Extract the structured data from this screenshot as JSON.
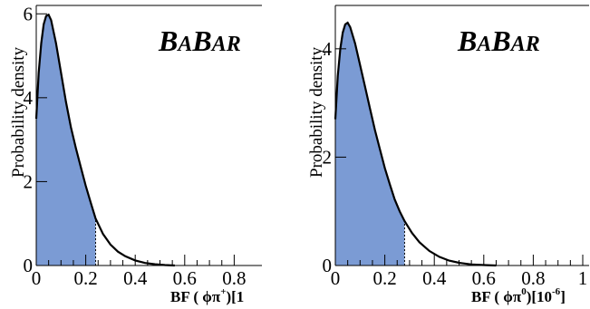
{
  "chart_data": [
    {
      "type": "area",
      "logo_text": {
        "big_b1": "B",
        "small_a1": "A",
        "big_b2": "B",
        "small_ar": "AR"
      },
      "ylabel": "Probability density",
      "xlabel": {
        "main": "BF ( ϕπ",
        "sup": "+",
        "tail": ")[1"
      },
      "xlim": [
        0,
        1
      ],
      "ylim": [
        0,
        6.2
      ],
      "x_ticks": [
        "0",
        "0.2",
        "0.4",
        "0.6",
        "0.8"
      ],
      "y_ticks": [
        "0",
        "2",
        "4",
        "6"
      ],
      "shaded_upper_limit": 0.24,
      "fill_color": "#7b9bd4",
      "curve": {
        "x": [
          0,
          0.01,
          0.02,
          0.03,
          0.04,
          0.05,
          0.06,
          0.08,
          0.1,
          0.12,
          0.14,
          0.16,
          0.18,
          0.2,
          0.22,
          0.24,
          0.27,
          0.3,
          0.33,
          0.36,
          0.4,
          0.44,
          0.48,
          0.52,
          0.56
        ],
        "y": [
          3.5,
          4.6,
          5.3,
          5.75,
          5.95,
          5.98,
          5.85,
          5.3,
          4.6,
          3.9,
          3.3,
          2.8,
          2.35,
          1.9,
          1.5,
          1.12,
          0.75,
          0.5,
          0.33,
          0.22,
          0.12,
          0.06,
          0.03,
          0.01,
          0.0
        ]
      }
    },
    {
      "type": "area",
      "logo_text": {
        "big_b1": "B",
        "small_a1": "A",
        "big_b2": "B",
        "small_ar": "AR"
      },
      "ylabel": "Probability density",
      "xlabel": {
        "main": "BF ( ϕπ",
        "sup": "0",
        "tail": ")[10",
        "exp": "-6",
        "end": "]"
      },
      "xlim": [
        0,
        1
      ],
      "ylim": [
        0,
        4.8
      ],
      "x_ticks": [
        "0",
        "0.2",
        "0.4",
        "0.6",
        "0.8",
        "1"
      ],
      "y_ticks": [
        "0",
        "2",
        "4"
      ],
      "shaded_upper_limit": 0.28,
      "fill_color": "#7b9bd4",
      "curve": {
        "x": [
          0,
          0.01,
          0.02,
          0.03,
          0.04,
          0.05,
          0.06,
          0.08,
          0.1,
          0.12,
          0.14,
          0.16,
          0.18,
          0.2,
          0.22,
          0.24,
          0.26,
          0.28,
          0.31,
          0.34,
          0.38,
          0.42,
          0.46,
          0.5,
          0.55,
          0.6,
          0.65
        ],
        "y": [
          2.7,
          3.5,
          4.0,
          4.3,
          4.45,
          4.48,
          4.4,
          4.1,
          3.7,
          3.3,
          2.9,
          2.5,
          2.15,
          1.8,
          1.5,
          1.22,
          1.0,
          0.82,
          0.6,
          0.43,
          0.27,
          0.16,
          0.09,
          0.05,
          0.02,
          0.008,
          0.0
        ]
      }
    }
  ]
}
